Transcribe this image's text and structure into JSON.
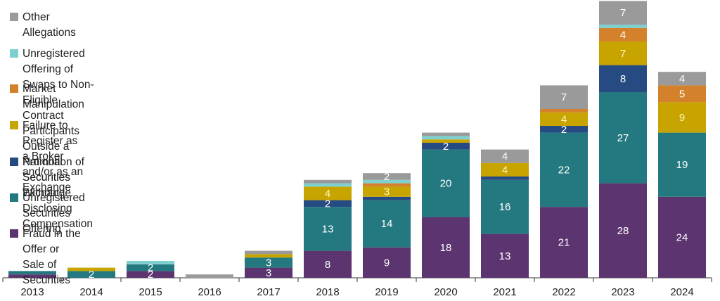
{
  "chart_data": {
    "type": "bar",
    "stacked": true,
    "title": "",
    "xlabel": "",
    "ylabel": "",
    "grid": false,
    "legend_position": "top-left",
    "categories": [
      "2013",
      "2014",
      "2015",
      "2016",
      "2017",
      "2018",
      "2019",
      "2020",
      "2021",
      "2022",
      "2023",
      "2024"
    ],
    "series": [
      {
        "name": "Fraud in the Offer or Sale of Securities",
        "color": "#5b3470",
        "values": [
          1,
          0,
          2,
          0,
          3,
          8,
          9,
          18,
          13,
          21,
          28,
          24
        ],
        "labels": [
          "",
          "",
          "2",
          "",
          "3",
          "8",
          "9",
          "18",
          "13",
          "21",
          "28",
          "24"
        ]
      },
      {
        "name": "Unregistered Securities Offering",
        "color": "#23797f",
        "values": [
          1,
          2,
          2,
          0,
          3,
          13,
          14,
          20,
          16,
          22,
          27,
          19
        ],
        "labels": [
          "",
          "2",
          "2",
          "",
          "3",
          "13",
          "14",
          "20",
          "16",
          "22",
          "27",
          "19"
        ]
      },
      {
        "name": "Promotion of Securities Without Disclosing Compensation",
        "color": "#264a82",
        "values": [
          0,
          0,
          0,
          0,
          0,
          2,
          1,
          2,
          1,
          2,
          8,
          0
        ],
        "labels": [
          "",
          "",
          "",
          "",
          "",
          "2",
          "",
          "2",
          "",
          "2",
          "8",
          ""
        ]
      },
      {
        "name": "Failure to Register as a Broker and/or as an Exchange",
        "color": "#c8a400",
        "values": [
          0,
          1,
          0,
          0,
          1,
          4,
          3,
          1,
          4,
          4,
          7,
          9
        ],
        "labels": [
          "",
          "",
          "",
          "",
          "",
          "4",
          "3",
          "",
          "4",
          "4",
          "7",
          "9"
        ]
      },
      {
        "name": "Market Manipulation",
        "color": "#d4812c",
        "values": [
          0,
          0,
          0,
          0,
          0,
          0,
          1,
          0,
          0,
          1,
          4,
          5
        ],
        "labels": [
          "",
          "",
          "",
          "",
          "",
          "",
          "",
          "",
          "",
          "",
          "4",
          "5"
        ]
      },
      {
        "name": "Unregistered Offering of Swaps to Non-Eligible Contract\nParticipants Outside a National Securities Exchange",
        "color": "#7ecfcf",
        "values": [
          0,
          0,
          1,
          0,
          0,
          1,
          1,
          1,
          0,
          0,
          1,
          0
        ],
        "labels": [
          "",
          "",
          "",
          "",
          "",
          "",
          "",
          "",
          "",
          "",
          "",
          ""
        ]
      },
      {
        "name": "Other Allegations",
        "color": "#9a9a9a",
        "values": [
          0,
          0,
          0,
          1,
          1,
          1,
          2,
          1,
          4,
          7,
          7,
          4
        ],
        "labels": [
          "",
          "",
          "",
          "",
          "",
          "",
          "2",
          "",
          "4",
          "7",
          "7",
          "4"
        ]
      }
    ],
    "legend_order": [
      6,
      5,
      4,
      3,
      2,
      1,
      0
    ]
  }
}
